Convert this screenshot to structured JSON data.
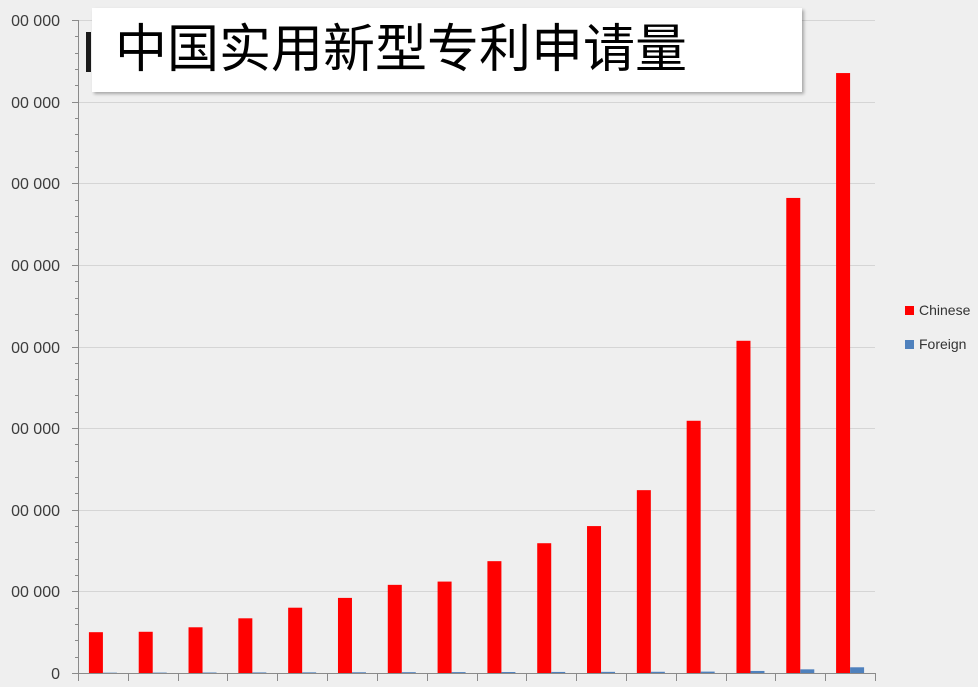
{
  "chart_data": {
    "type": "bar",
    "title": "中国实用新型专利申请量",
    "ylim": [
      0,
      800000
    ],
    "yticks": [
      0,
      100000,
      200000,
      300000,
      400000,
      500000,
      600000,
      700000,
      800000
    ],
    "ytick_labels": [
      "0",
      "00 000",
      "00 000",
      "00 000",
      "00 000",
      "00 000",
      "00 000",
      "00 000",
      "00 000"
    ],
    "grid": true,
    "legend_position": "right",
    "series": [
      {
        "name": "Chinese",
        "color": "#ff0000",
        "values": [
          50000,
          50500,
          56000,
          67000,
          80000,
          92000,
          108000,
          112000,
          137000,
          159000,
          180000,
          224000,
          309000,
          407000,
          582000,
          735000
        ]
      },
      {
        "name": "Foreign",
        "color": "#4f81bd",
        "values": [
          400,
          500,
          600,
          700,
          800,
          900,
          1000,
          1100,
          1200,
          1300,
          1400,
          1500,
          1700,
          2500,
          4500,
          7000
        ]
      }
    ]
  }
}
